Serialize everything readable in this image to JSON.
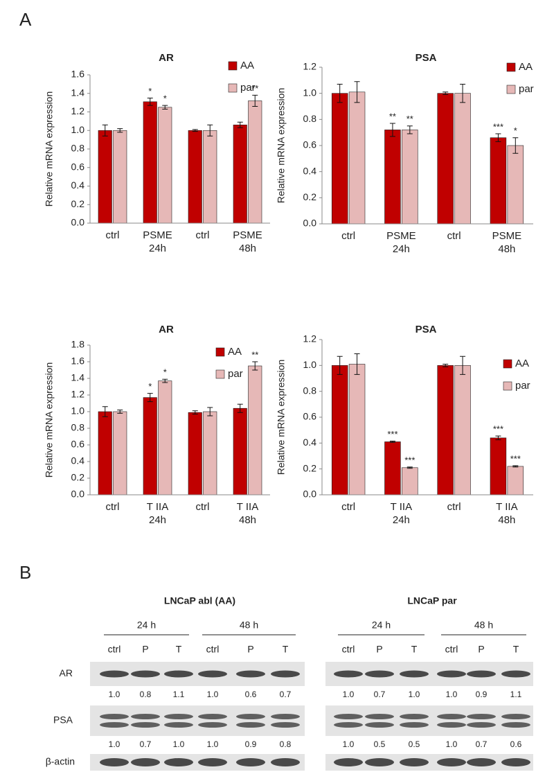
{
  "panel_labels": [
    "A",
    "B"
  ],
  "chart_data": [
    {
      "type": "bar",
      "title": "AR",
      "y_label": "Relative  mRNA  expression",
      "categories": [
        [
          "ctrl"
        ],
        [
          "PSME",
          "24h"
        ],
        [
          "ctrl"
        ],
        [
          "PSME",
          "48h"
        ]
      ],
      "ylim": [
        0,
        1.6
      ],
      "yticks": [
        {
          "value": 0,
          "label": "0.0"
        },
        {
          "value": 0.2,
          "label": "0.2"
        },
        {
          "value": 0.4,
          "label": "0.4"
        },
        {
          "value": 0.6,
          "label": "0.6"
        },
        {
          "value": 0.8,
          "label": "0.8"
        },
        {
          "value": 1,
          "label": "1.0"
        },
        {
          "value": 1.2,
          "label": "1.2"
        },
        {
          "value": 1.4,
          "label": "1.4"
        },
        {
          "value": 1.6,
          "label": "1.6"
        }
      ],
      "series": [
        {
          "name": "AA",
          "color": "#c00000",
          "values": [
            1.0,
            1.31,
            1.0,
            1.06
          ],
          "errors": [
            0.06,
            0.04,
            0.01,
            0.03
          ],
          "significance": [
            null,
            "*",
            null,
            null
          ]
        },
        {
          "name": "par",
          "color": "#e6b8b7",
          "values": [
            1.0,
            1.25,
            1.0,
            1.32
          ],
          "errors": [
            0.02,
            0.02,
            0.06,
            0.06
          ],
          "significance": [
            null,
            "*",
            null,
            "**"
          ]
        }
      ]
    },
    {
      "type": "bar",
      "title": "PSA",
      "y_label": "Relative  mRNA  expression",
      "categories": [
        [
          "ctrl"
        ],
        [
          "PSME",
          "24h"
        ],
        [
          "ctrl"
        ],
        [
          "PSME",
          "48h"
        ]
      ],
      "ylim": [
        0,
        1.2
      ],
      "yticks": [
        {
          "value": 0,
          "label": "0.0"
        },
        {
          "value": 0.2,
          "label": "0.2"
        },
        {
          "value": 0.4,
          "label": "0.4"
        },
        {
          "value": 0.6,
          "label": "0.6"
        },
        {
          "value": 0.8,
          "label": "0.8"
        },
        {
          "value": 1,
          "label": "1.0"
        },
        {
          "value": 1.2,
          "label": "1.2"
        }
      ],
      "series": [
        {
          "name": "AA",
          "color": "#c00000",
          "values": [
            1.0,
            0.72,
            1.0,
            0.66
          ],
          "errors": [
            0.07,
            0.05,
            0.01,
            0.03
          ],
          "significance": [
            null,
            "**",
            null,
            "***"
          ]
        },
        {
          "name": "par",
          "color": "#e6b8b7",
          "values": [
            1.01,
            0.72,
            1.0,
            0.6
          ],
          "errors": [
            0.08,
            0.03,
            0.07,
            0.06
          ],
          "significance": [
            null,
            "**",
            null,
            "*"
          ]
        }
      ]
    },
    {
      "type": "bar",
      "title": "AR",
      "y_label": "Relative  mRNA  expression",
      "categories": [
        [
          "ctrl"
        ],
        [
          "T IIA",
          "24h"
        ],
        [
          "ctrl"
        ],
        [
          "T IIA",
          "48h"
        ]
      ],
      "ylim": [
        0,
        1.8
      ],
      "yticks": [
        {
          "value": 0,
          "label": "0.0"
        },
        {
          "value": 0.2,
          "label": "0.2"
        },
        {
          "value": 0.4,
          "label": "0.4"
        },
        {
          "value": 0.6,
          "label": "0.6"
        },
        {
          "value": 0.8,
          "label": "0.8"
        },
        {
          "value": 1,
          "label": "1.0"
        },
        {
          "value": 1.2,
          "label": "1.2"
        },
        {
          "value": 1.4,
          "label": "1.4"
        },
        {
          "value": 1.6,
          "label": "1.6"
        },
        {
          "value": 1.8,
          "label": "1.8"
        }
      ],
      "series": [
        {
          "name": "AA",
          "color": "#c00000",
          "values": [
            1.0,
            1.17,
            0.99,
            1.04
          ],
          "errors": [
            0.06,
            0.05,
            0.02,
            0.05
          ],
          "significance": [
            null,
            "*",
            null,
            null
          ]
        },
        {
          "name": "par",
          "color": "#e6b8b7",
          "values": [
            1.0,
            1.37,
            1.0,
            1.55
          ],
          "errors": [
            0.02,
            0.02,
            0.05,
            0.05
          ],
          "significance": [
            null,
            "*",
            null,
            "**"
          ]
        }
      ]
    },
    {
      "type": "bar",
      "title": "PSA",
      "y_label": "Relative  mRNA  expression",
      "categories": [
        [
          "ctrl"
        ],
        [
          "T IIA",
          "24h"
        ],
        [
          "ctrl"
        ],
        [
          "T IIA",
          "48h"
        ]
      ],
      "ylim": [
        0,
        1.2
      ],
      "yticks": [
        {
          "value": 0,
          "label": "0.0"
        },
        {
          "value": 0.2,
          "label": "0.2"
        },
        {
          "value": 0.4,
          "label": "0.4"
        },
        {
          "value": 0.6,
          "label": "0.6"
        },
        {
          "value": 0.8,
          "label": "0.8"
        },
        {
          "value": 1,
          "label": "1.0"
        },
        {
          "value": 1.2,
          "label": "1.2"
        }
      ],
      "series": [
        {
          "name": "AA",
          "color": "#c00000",
          "values": [
            1.0,
            0.41,
            1.0,
            0.44
          ],
          "errors": [
            0.07,
            0.005,
            0.01,
            0.015
          ],
          "significance": [
            null,
            "***",
            null,
            "***"
          ]
        },
        {
          "name": "par",
          "color": "#e6b8b7",
          "values": [
            1.01,
            0.21,
            1.0,
            0.22
          ],
          "errors": [
            0.08,
            0.005,
            0.07,
            0.005
          ],
          "significance": [
            null,
            "***",
            null,
            "***"
          ]
        }
      ]
    }
  ],
  "blot": {
    "rows": [
      "AR",
      "PSA",
      "β-actin"
    ],
    "groups": [
      {
        "title": "LNCaP abl (AA)",
        "times": [
          "24 h",
          "48 h"
        ],
        "lanes": [
          "ctrl",
          "P",
          "T",
          "ctrl",
          "P",
          "T"
        ],
        "quant": [
          [
            "1.0",
            "0.8",
            "1.1",
            "1.0",
            "0.6",
            "0.7"
          ],
          [
            "1.0",
            "0.7",
            "1.0",
            "1.0",
            "0.9",
            "0.8"
          ]
        ]
      },
      {
        "title": "LNCaP par",
        "times": [
          "24 h",
          "48 h"
        ],
        "lanes": [
          "ctrl",
          "P",
          "T",
          "ctrl",
          "P",
          "T"
        ],
        "quant": [
          [
            "1.0",
            "0.7",
            "1.0",
            "1.0",
            "0.9",
            "1.1"
          ],
          [
            "1.0",
            "0.5",
            "0.5",
            "1.0",
            "0.7",
            "0.6"
          ]
        ]
      }
    ]
  }
}
